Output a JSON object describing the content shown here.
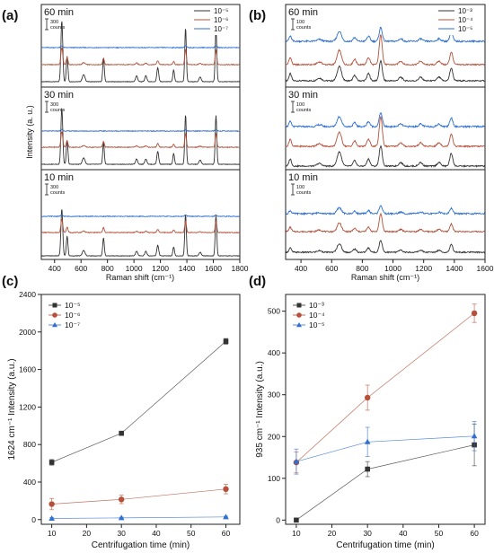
{
  "panels": {
    "a": {
      "letter": "(a)",
      "xlabel": "Raman shift (cm⁻¹)",
      "ylabel": "Intensity (a. u.)",
      "xticks": [
        "400",
        "600",
        "800",
        "1000",
        "1200",
        "1400",
        "1600",
        "1800"
      ],
      "xrange": [
        300,
        1800
      ],
      "scale_bar_label": [
        "300",
        "counts"
      ],
      "legend": [
        "10⁻⁵",
        "10⁻⁶",
        "10⁻⁷"
      ],
      "blocks": [
        "60 min",
        "30 min",
        "10 min"
      ]
    },
    "b": {
      "letter": "(b)",
      "xlabel": "Raman shift (cm⁻¹)",
      "xticks": [
        "400",
        "600",
        "800",
        "1000",
        "1200",
        "1400",
        "1600"
      ],
      "xrange": [
        300,
        1600
      ],
      "scale_bar_label": [
        "100",
        "counts"
      ],
      "legend": [
        "10⁻³",
        "10⁻⁴",
        "10⁻⁵"
      ],
      "blocks": [
        "60 min",
        "30 min",
        "10 min"
      ]
    },
    "c": {
      "letter": "(c)"
    },
    "d": {
      "letter": "(d)"
    }
  },
  "colors": {
    "black": "#333333",
    "red": "#b5503a",
    "blue": "#2f6fd0",
    "gray_line": "#888888"
  },
  "chart_data": [
    {
      "type": "line",
      "title": "",
      "xlabel": "Centrifugation time (min)",
      "ylabel": "1624 cm⁻¹ Intensity (a.u.)",
      "x": [
        10,
        30,
        60
      ],
      "xticks": [
        10,
        20,
        30,
        40,
        50,
        60
      ],
      "yticks": [
        0,
        400,
        800,
        1200,
        1600,
        2000,
        2400
      ],
      "xlim": [
        7,
        64
      ],
      "ylim": [
        -50,
        2400
      ],
      "legend_position": "top-left",
      "series": [
        {
          "name": "10⁻⁵",
          "values": [
            610,
            920,
            1900
          ],
          "errors": [
            30,
            20,
            30
          ],
          "marker": "square",
          "color": "#333333"
        },
        {
          "name": "10⁻⁶",
          "values": [
            165,
            215,
            325
          ],
          "errors": [
            60,
            45,
            50
          ],
          "marker": "circle",
          "color": "#b5503a"
        },
        {
          "name": "10⁻⁷",
          "values": [
            12,
            18,
            28
          ],
          "errors": [
            10,
            8,
            8
          ],
          "marker": "triangle",
          "color": "#2f6fd0"
        }
      ]
    },
    {
      "type": "line",
      "title": "",
      "xlabel": "Centrifugation time (min)",
      "ylabel": "935 cm⁻¹ Intensity (a.u.)",
      "x": [
        10,
        30,
        60
      ],
      "xticks": [
        10,
        20,
        30,
        40,
        50,
        60
      ],
      "yticks": [
        0,
        100,
        200,
        300,
        400,
        500
      ],
      "xlim": [
        7,
        63
      ],
      "ylim": [
        -10,
        540
      ],
      "legend_position": "top-left",
      "series": [
        {
          "name": "10⁻³",
          "values": [
            0,
            122,
            180
          ],
          "errors": [
            0,
            18,
            50
          ],
          "marker": "square",
          "color": "#333333"
        },
        {
          "name": "10⁻⁴",
          "values": [
            138,
            293,
            495
          ],
          "errors": [
            25,
            30,
            22
          ],
          "marker": "circle",
          "color": "#b5503a"
        },
        {
          "name": "10⁻⁵",
          "values": [
            140,
            187,
            201
          ],
          "errors": [
            30,
            35,
            35
          ],
          "marker": "triangle",
          "color": "#2f6fd0"
        }
      ]
    }
  ]
}
